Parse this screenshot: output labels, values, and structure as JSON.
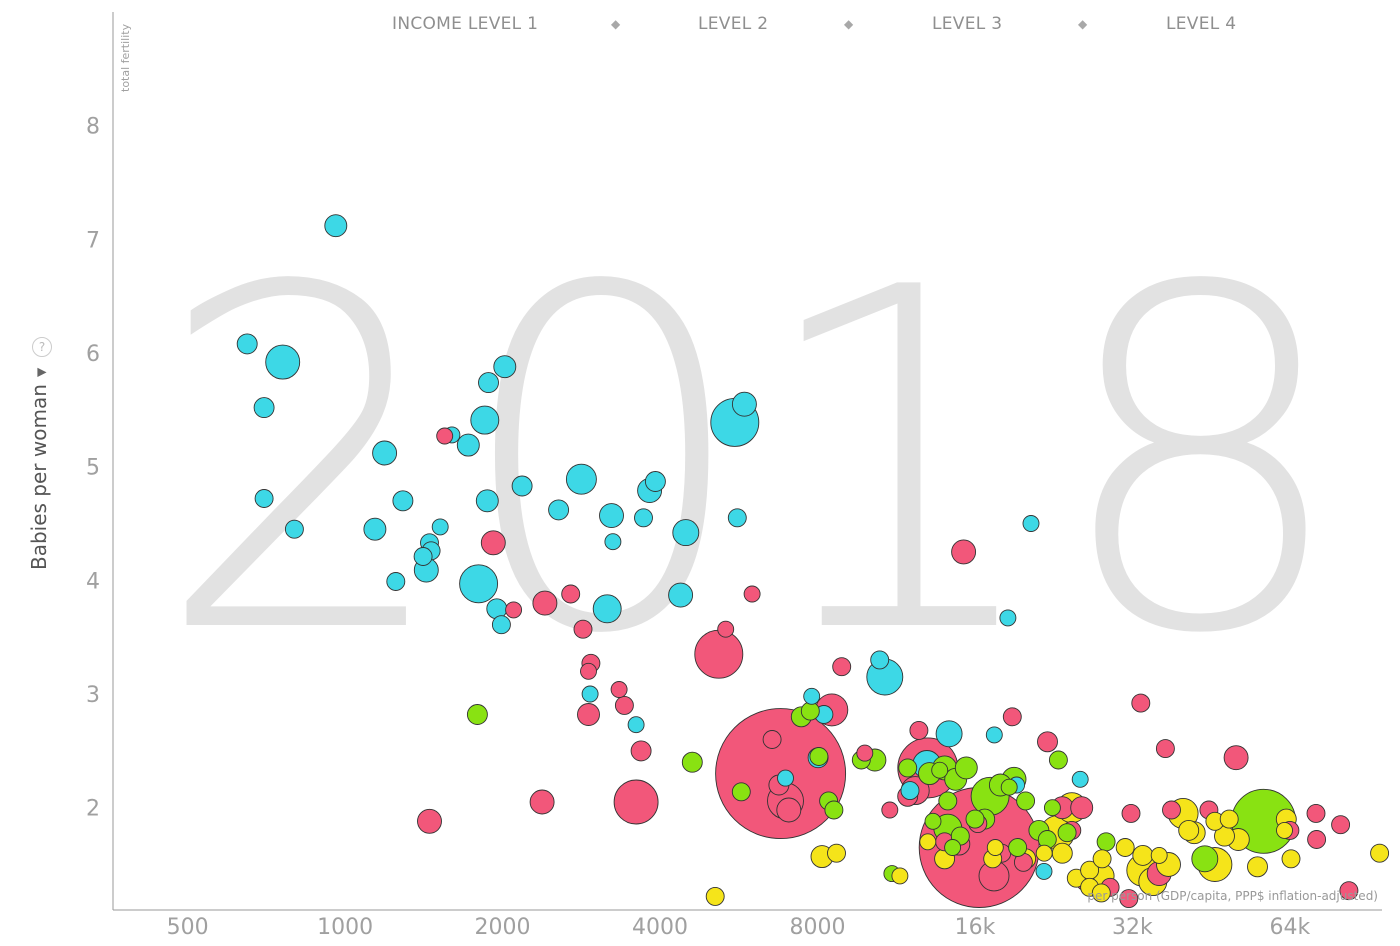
{
  "legend": {
    "items": [
      "INCOME LEVEL 1",
      "LEVEL 2",
      "LEVEL 3",
      "LEVEL 4"
    ],
    "separator": "◆"
  },
  "y_axis": {
    "title": "Babies per woman",
    "subtitle": "total fertility",
    "help_icon": "help-icon",
    "dropdown_icon": "triangle-down-icon"
  },
  "x_axis": {
    "subtitle": "per person (GDP/capita, PPP$ inflation-adjusted)"
  },
  "year": "2018",
  "colors": {
    "level1": "#3dd8e6",
    "level2": "#f2577a",
    "level3": "#89e212",
    "level4": "#f5e41a",
    "axis": "#888888",
    "year": "#e2e2e2"
  },
  "chart_data": {
    "type": "scatter",
    "x_scale": "log2",
    "xlim": [
      360,
      96000
    ],
    "ylim": [
      1.1,
      9.0
    ],
    "x_ticks": [
      500,
      1000,
      2000,
      4000,
      8000,
      16000,
      32000,
      64000
    ],
    "x_tick_labels": [
      "500",
      "1000",
      "2000",
      "4000",
      "8000",
      "16k",
      "32k",
      "64k"
    ],
    "y_ticks": [
      2,
      3,
      4,
      5,
      6,
      7,
      8
    ],
    "y_tick_labels": [
      "2",
      "3",
      "4",
      "5",
      "6",
      "7",
      "8"
    ],
    "point_format": "[gdp_per_capita, babies_per_woman, relative_size]",
    "series": [
      {
        "name": "INCOME LEVEL 1",
        "color": "#3dd8e6",
        "points": [
          [
            960,
            7.12,
            11
          ],
          [
            650,
            6.08,
            10
          ],
          [
            760,
            5.92,
            17
          ],
          [
            700,
            5.52,
            10
          ],
          [
            700,
            4.72,
            9
          ],
          [
            800,
            4.45,
            9
          ],
          [
            2020,
            5.88,
            11
          ],
          [
            1880,
            5.74,
            10
          ],
          [
            1850,
            5.41,
            14
          ],
          [
            1600,
            5.28,
            8
          ],
          [
            1720,
            5.19,
            11
          ],
          [
            1190,
            5.12,
            12
          ],
          [
            1870,
            4.7,
            11
          ],
          [
            1290,
            4.7,
            10
          ],
          [
            2180,
            4.83,
            10
          ],
          [
            2830,
            4.89,
            15
          ],
          [
            1520,
            4.47,
            8
          ],
          [
            2560,
            4.62,
            10
          ],
          [
            3230,
            4.57,
            12
          ],
          [
            3820,
            4.79,
            12
          ],
          [
            3920,
            4.87,
            10
          ],
          [
            3720,
            4.55,
            9
          ],
          [
            1140,
            4.45,
            11
          ],
          [
            1450,
            4.33,
            9
          ],
          [
            1460,
            4.26,
            9
          ],
          [
            1410,
            4.21,
            9
          ],
          [
            1430,
            4.09,
            12
          ],
          [
            1250,
            3.99,
            9
          ],
          [
            1800,
            3.97,
            19
          ],
          [
            3250,
            4.34,
            8
          ],
          [
            4480,
            4.42,
            13
          ],
          [
            1950,
            3.75,
            10
          ],
          [
            1990,
            3.61,
            9
          ],
          [
            3170,
            3.75,
            14
          ],
          [
            4380,
            3.87,
            12
          ],
          [
            5560,
            5.39,
            24
          ],
          [
            5800,
            5.55,
            12
          ],
          [
            5620,
            4.55,
            9
          ],
          [
            2940,
            3.0,
            8
          ],
          [
            3600,
            2.73,
            8
          ],
          [
            10760,
            3.15,
            18
          ],
          [
            10520,
            3.3,
            9
          ],
          [
            20480,
            4.5,
            8
          ],
          [
            18500,
            3.67,
            8
          ],
          [
            7800,
            2.98,
            8
          ],
          [
            8020,
            2.44,
            10
          ],
          [
            6950,
            2.26,
            8
          ],
          [
            14280,
            2.65,
            13
          ],
          [
            17420,
            2.64,
            8
          ],
          [
            19220,
            2.2,
            8
          ],
          [
            12020,
            2.15,
            9
          ],
          [
            12950,
            2.38,
            14
          ],
          [
            25430,
            2.25,
            8
          ],
          [
            21680,
            1.44,
            8
          ],
          [
            8230,
            2.82,
            9
          ]
        ]
      },
      {
        "name": "LEVEL 2",
        "color": "#f2577a",
        "points": [
          [
            1550,
            5.27,
            8
          ],
          [
            1920,
            4.33,
            12
          ],
          [
            1450,
            1.88,
            12
          ],
          [
            2410,
            3.8,
            12
          ],
          [
            2100,
            3.74,
            8
          ],
          [
            2700,
            3.88,
            9
          ],
          [
            2850,
            3.57,
            9
          ],
          [
            2950,
            3.27,
            9
          ],
          [
            2920,
            3.2,
            8
          ],
          [
            3340,
            3.04,
            8
          ],
          [
            3420,
            2.9,
            9
          ],
          [
            2920,
            2.82,
            11
          ],
          [
            3680,
            2.5,
            10
          ],
          [
            2380,
            2.05,
            12
          ],
          [
            3600,
            2.05,
            22
          ],
          [
            5180,
            3.35,
            24
          ],
          [
            5340,
            3.57,
            8
          ],
          [
            6000,
            3.88,
            8
          ],
          [
            6800,
            2.3,
            65
          ],
          [
            6550,
            2.6,
            9
          ],
          [
            6950,
            2.06,
            18
          ],
          [
            7050,
            1.98,
            12
          ],
          [
            6750,
            2.2,
            10
          ],
          [
            8520,
            2.86,
            16
          ],
          [
            8900,
            3.24,
            9
          ],
          [
            9850,
            2.48,
            8
          ],
          [
            15220,
            4.25,
            12
          ],
          [
            12500,
            2.68,
            9
          ],
          [
            13000,
            2.35,
            30
          ],
          [
            12300,
            2.15,
            14
          ],
          [
            11900,
            2.1,
            10
          ],
          [
            11000,
            1.98,
            8
          ],
          [
            16300,
            1.65,
            60
          ],
          [
            17400,
            1.4,
            15
          ],
          [
            14000,
            1.7,
            9
          ],
          [
            18860,
            2.8,
            9
          ],
          [
            22020,
            2.58,
            10
          ],
          [
            23500,
            2.0,
            11
          ],
          [
            25600,
            2.0,
            11
          ],
          [
            16200,
            1.86,
            9
          ],
          [
            14900,
            1.68,
            11
          ],
          [
            19800,
            1.52,
            9
          ],
          [
            18000,
            1.6,
            9
          ],
          [
            33200,
            2.92,
            9
          ],
          [
            37000,
            2.52,
            9
          ],
          [
            38000,
            1.98,
            9
          ],
          [
            31500,
            1.2,
            9
          ],
          [
            44800,
            1.98,
            9
          ],
          [
            50500,
            2.44,
            12
          ],
          [
            31800,
            1.95,
            9
          ],
          [
            24500,
            1.8,
            9
          ],
          [
            71800,
            1.95,
            9
          ],
          [
            72000,
            1.72,
            9
          ],
          [
            80000,
            1.85,
            9
          ],
          [
            83000,
            1.27,
            9
          ],
          [
            64000,
            1.8,
            9
          ],
          [
            26000,
            1.35,
            9
          ],
          [
            29000,
            1.3,
            9
          ],
          [
            36000,
            1.42,
            12
          ]
        ]
      },
      {
        "name": "LEVEL 3",
        "color": "#89e212",
        "points": [
          [
            1790,
            2.82,
            10
          ],
          [
            4610,
            2.4,
            10
          ],
          [
            5720,
            2.14,
            9
          ],
          [
            7450,
            2.8,
            10
          ],
          [
            7750,
            2.85,
            9
          ],
          [
            8050,
            2.45,
            9
          ],
          [
            8400,
            2.06,
            9
          ],
          [
            8600,
            1.98,
            9
          ],
          [
            9700,
            2.42,
            9
          ],
          [
            10300,
            2.42,
            11
          ],
          [
            11900,
            2.35,
            9
          ],
          [
            14000,
            2.35,
            12
          ],
          [
            13100,
            2.3,
            11
          ],
          [
            13700,
            2.33,
            8
          ],
          [
            14700,
            2.25,
            11
          ],
          [
            15400,
            2.35,
            11
          ],
          [
            14200,
            2.06,
            9
          ],
          [
            16000,
            1.9,
            9
          ],
          [
            14200,
            1.82,
            14
          ],
          [
            15000,
            1.75,
            9
          ],
          [
            17100,
            2.1,
            19
          ],
          [
            17900,
            2.2,
            11
          ],
          [
            19000,
            2.25,
            12
          ],
          [
            18600,
            2.18,
            8
          ],
          [
            20000,
            2.06,
            9
          ],
          [
            22500,
            2.0,
            8
          ],
          [
            23100,
            2.42,
            9
          ],
          [
            19300,
            1.65,
            9
          ],
          [
            21200,
            1.8,
            10
          ],
          [
            22000,
            1.72,
            9
          ],
          [
            24000,
            1.78,
            9
          ],
          [
            13300,
            1.88,
            8
          ],
          [
            14500,
            1.65,
            8
          ],
          [
            11100,
            1.42,
            8
          ],
          [
            57000,
            1.88,
            32
          ],
          [
            44000,
            1.55,
            13
          ],
          [
            28500,
            1.7,
            9
          ],
          [
            16700,
            1.9,
            10
          ]
        ]
      },
      {
        "name": "LEVEL 4",
        "color": "#f5e41a",
        "points": [
          [
            5100,
            1.22,
            9
          ],
          [
            8160,
            1.57,
            11
          ],
          [
            8700,
            1.6,
            9
          ],
          [
            11500,
            1.4,
            8
          ],
          [
            13000,
            1.7,
            8
          ],
          [
            14000,
            1.55,
            10
          ],
          [
            17300,
            1.55,
            9
          ],
          [
            17500,
            1.65,
            8
          ],
          [
            20000,
            1.55,
            10
          ],
          [
            21700,
            1.6,
            8
          ],
          [
            23000,
            1.78,
            17
          ],
          [
            24500,
            2.0,
            15
          ],
          [
            23500,
            1.6,
            10
          ],
          [
            25000,
            1.38,
            9
          ],
          [
            26500,
            1.45,
            9
          ],
          [
            28000,
            1.4,
            12
          ],
          [
            26500,
            1.3,
            9
          ],
          [
            27900,
            1.25,
            9
          ],
          [
            31000,
            1.65,
            9
          ],
          [
            33500,
            1.58,
            10
          ],
          [
            33500,
            1.45,
            16
          ],
          [
            35000,
            1.35,
            14
          ],
          [
            37500,
            1.5,
            12
          ],
          [
            40000,
            1.95,
            15
          ],
          [
            41000,
            1.8,
            10
          ],
          [
            42000,
            1.78,
            11
          ],
          [
            46000,
            1.5,
            17
          ],
          [
            46000,
            1.88,
            9
          ],
          [
            48000,
            1.75,
            10
          ],
          [
            49000,
            1.9,
            9
          ],
          [
            51000,
            1.72,
            11
          ],
          [
            55500,
            1.48,
            10
          ],
          [
            63000,
            1.9,
            10
          ],
          [
            62500,
            1.8,
            8
          ],
          [
            64300,
            1.55,
            9
          ],
          [
            95000,
            1.6,
            9
          ],
          [
            28000,
            1.55,
            9
          ],
          [
            36000,
            1.58,
            8
          ]
        ]
      }
    ]
  }
}
